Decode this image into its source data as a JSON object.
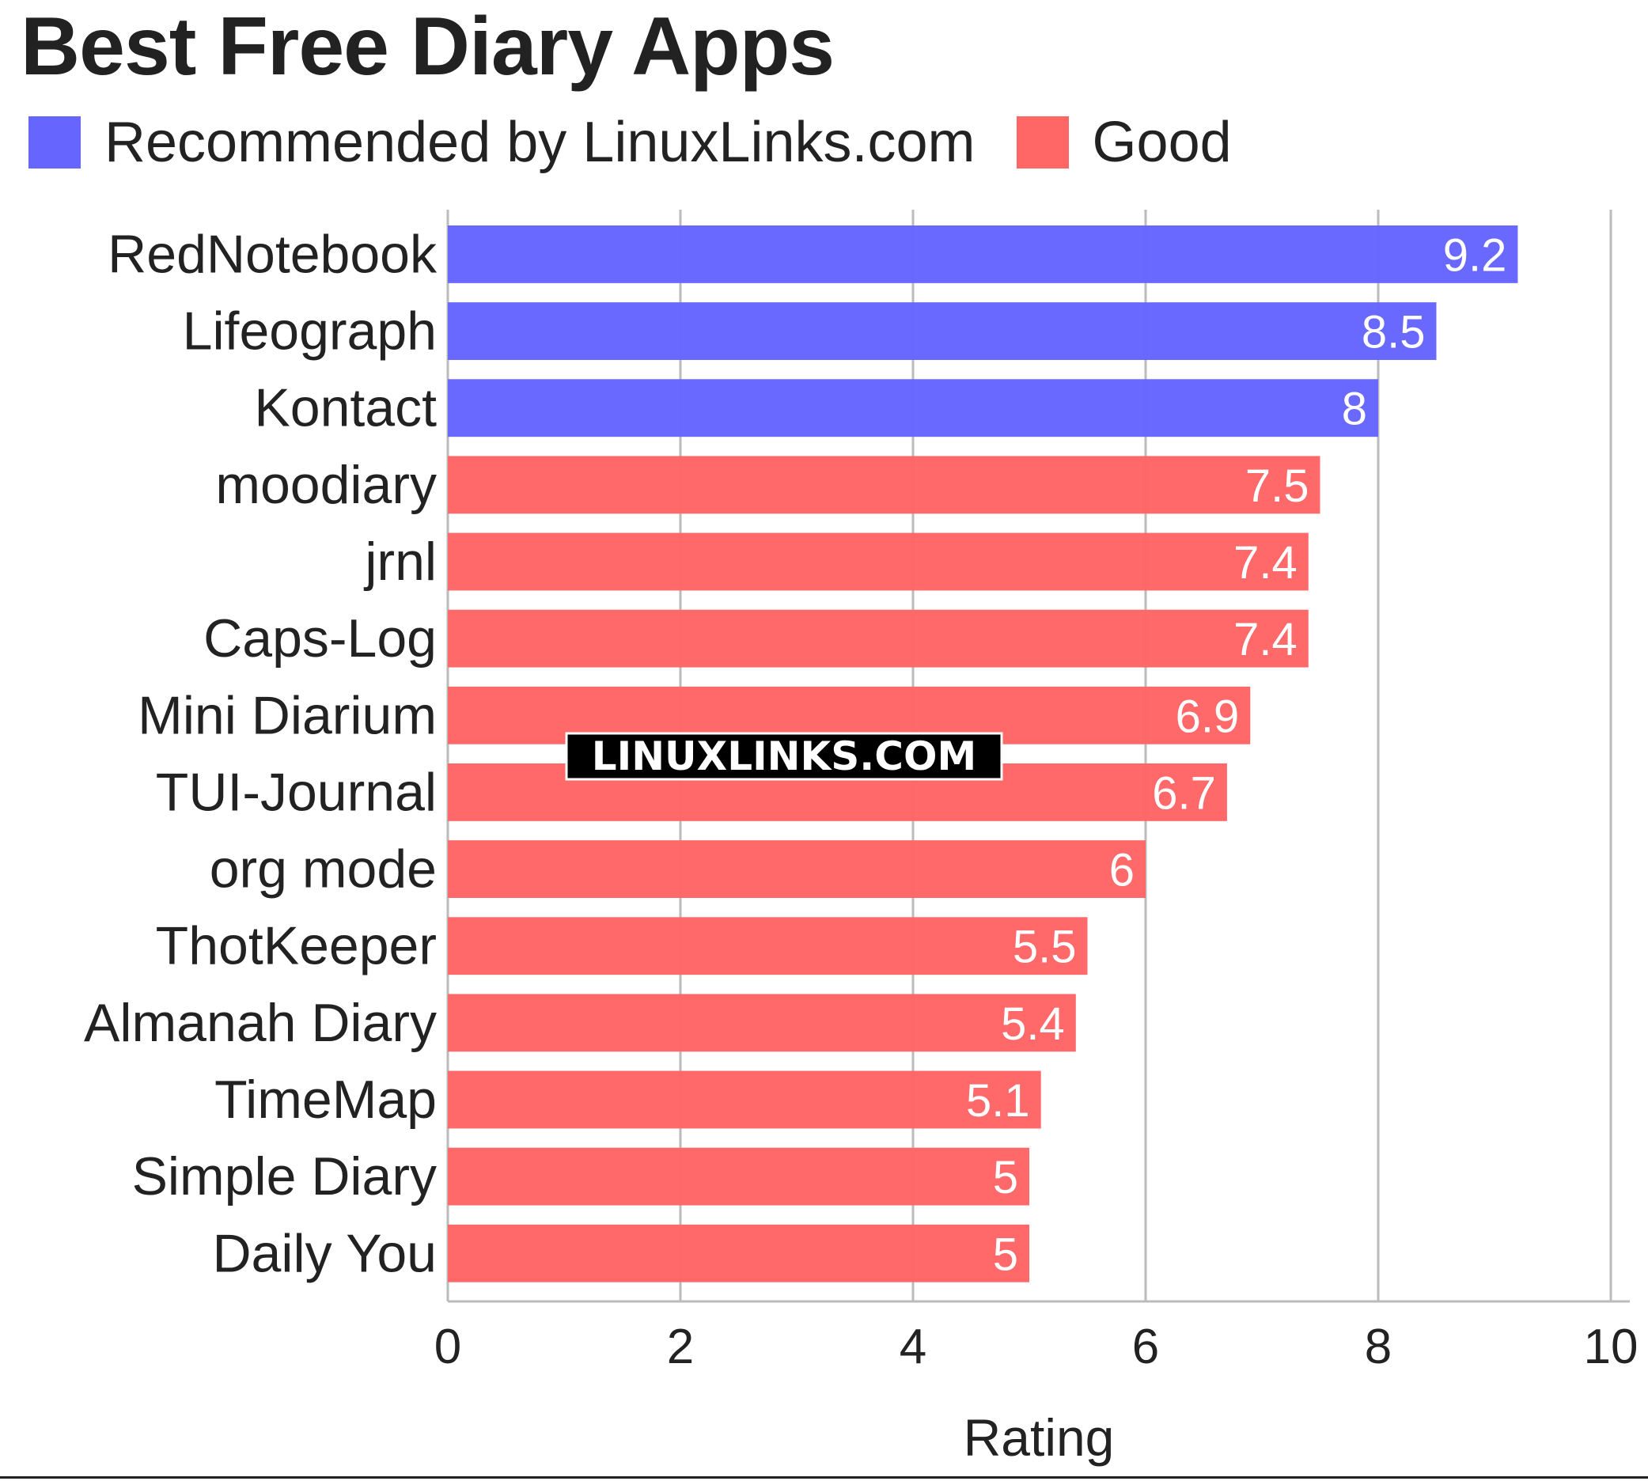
{
  "title": "Best Free Diary Apps",
  "legend": [
    {
      "label": "Recommended by LinuxLinks.com",
      "color": "#6666ff"
    },
    {
      "label": "Good",
      "color": "#ff6666"
    }
  ],
  "watermark": "LINUXLINKS.COM",
  "chart_data": {
    "type": "bar",
    "orientation": "horizontal",
    "title": "Best Free Diary Apps",
    "xlabel": "Rating",
    "ylabel": "",
    "xlim": [
      0,
      10
    ],
    "xticks": [
      0,
      2,
      4,
      6,
      8,
      10
    ],
    "grid": "vertical",
    "legend_position": "top-left",
    "categories": [
      "RedNotebook",
      "Lifeograph",
      "Kontact",
      "moodiary",
      "jrnl",
      "Caps-Log",
      "Mini Diarium",
      "TUI-Journal",
      "org mode",
      "ThotKeeper",
      "Almanah Diary",
      "TimeMap",
      "Simple Diary",
      "Daily You"
    ],
    "values": [
      9.2,
      8.5,
      8,
      7.5,
      7.4,
      7.4,
      6.9,
      6.7,
      6,
      5.5,
      5.4,
      5.1,
      5,
      5
    ],
    "groups": [
      "Recommended by LinuxLinks.com",
      "Recommended by LinuxLinks.com",
      "Recommended by LinuxLinks.com",
      "Good",
      "Good",
      "Good",
      "Good",
      "Good",
      "Good",
      "Good",
      "Good",
      "Good",
      "Good",
      "Good"
    ],
    "colors": {
      "Recommended by LinuxLinks.com": "#6666ff",
      "Good": "#ff6666"
    }
  }
}
